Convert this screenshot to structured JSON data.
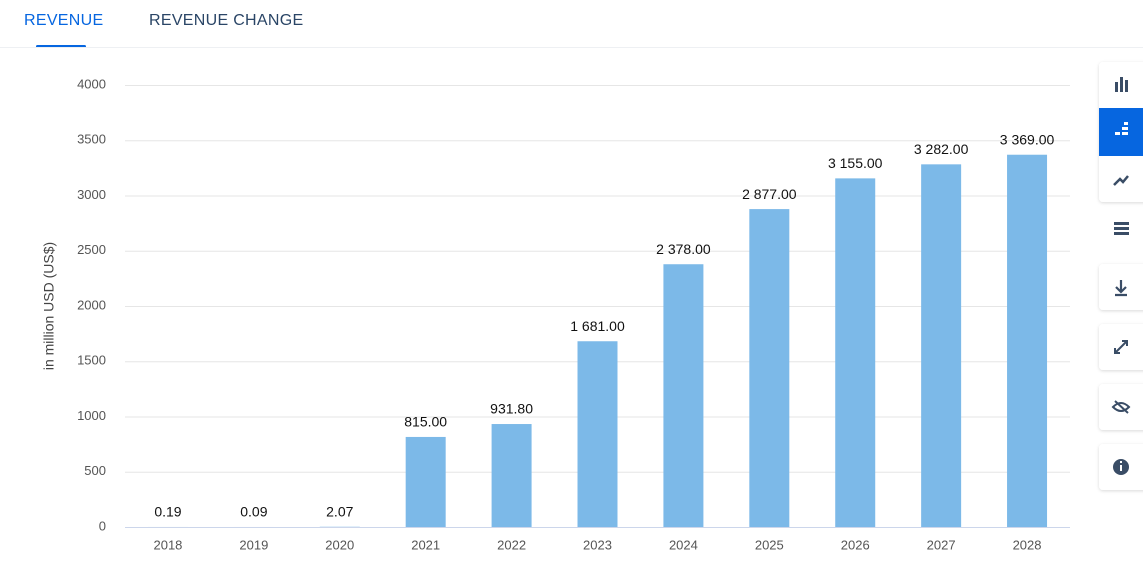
{
  "tabs": [
    "REVENUE",
    "REVENUE CHANGE"
  ],
  "chart_data": {
    "type": "bar",
    "y_axis_label": "in million USD (US$)",
    "categories": [
      "2018",
      "2019",
      "2020",
      "2021",
      "2022",
      "2023",
      "2024",
      "2025",
      "2026",
      "2027",
      "2028"
    ],
    "values": [
      0.19,
      0.09,
      2.07,
      815,
      931.8,
      1681,
      2378,
      2877,
      3155,
      3282,
      3369
    ],
    "value_labels": [
      "0.19",
      "0.09",
      "2.07",
      "815.00",
      "931.80",
      "1 681.00",
      "2 378.00",
      "2 877.00",
      "3 155.00",
      "3 282.00",
      "3 369.00"
    ],
    "color": "#7cb9e8",
    "ylim": [
      0,
      4000
    ],
    "yticks": [
      0,
      500,
      1000,
      1500,
      2000,
      2500,
      3000,
      3500,
      4000
    ],
    "grid": true
  }
}
